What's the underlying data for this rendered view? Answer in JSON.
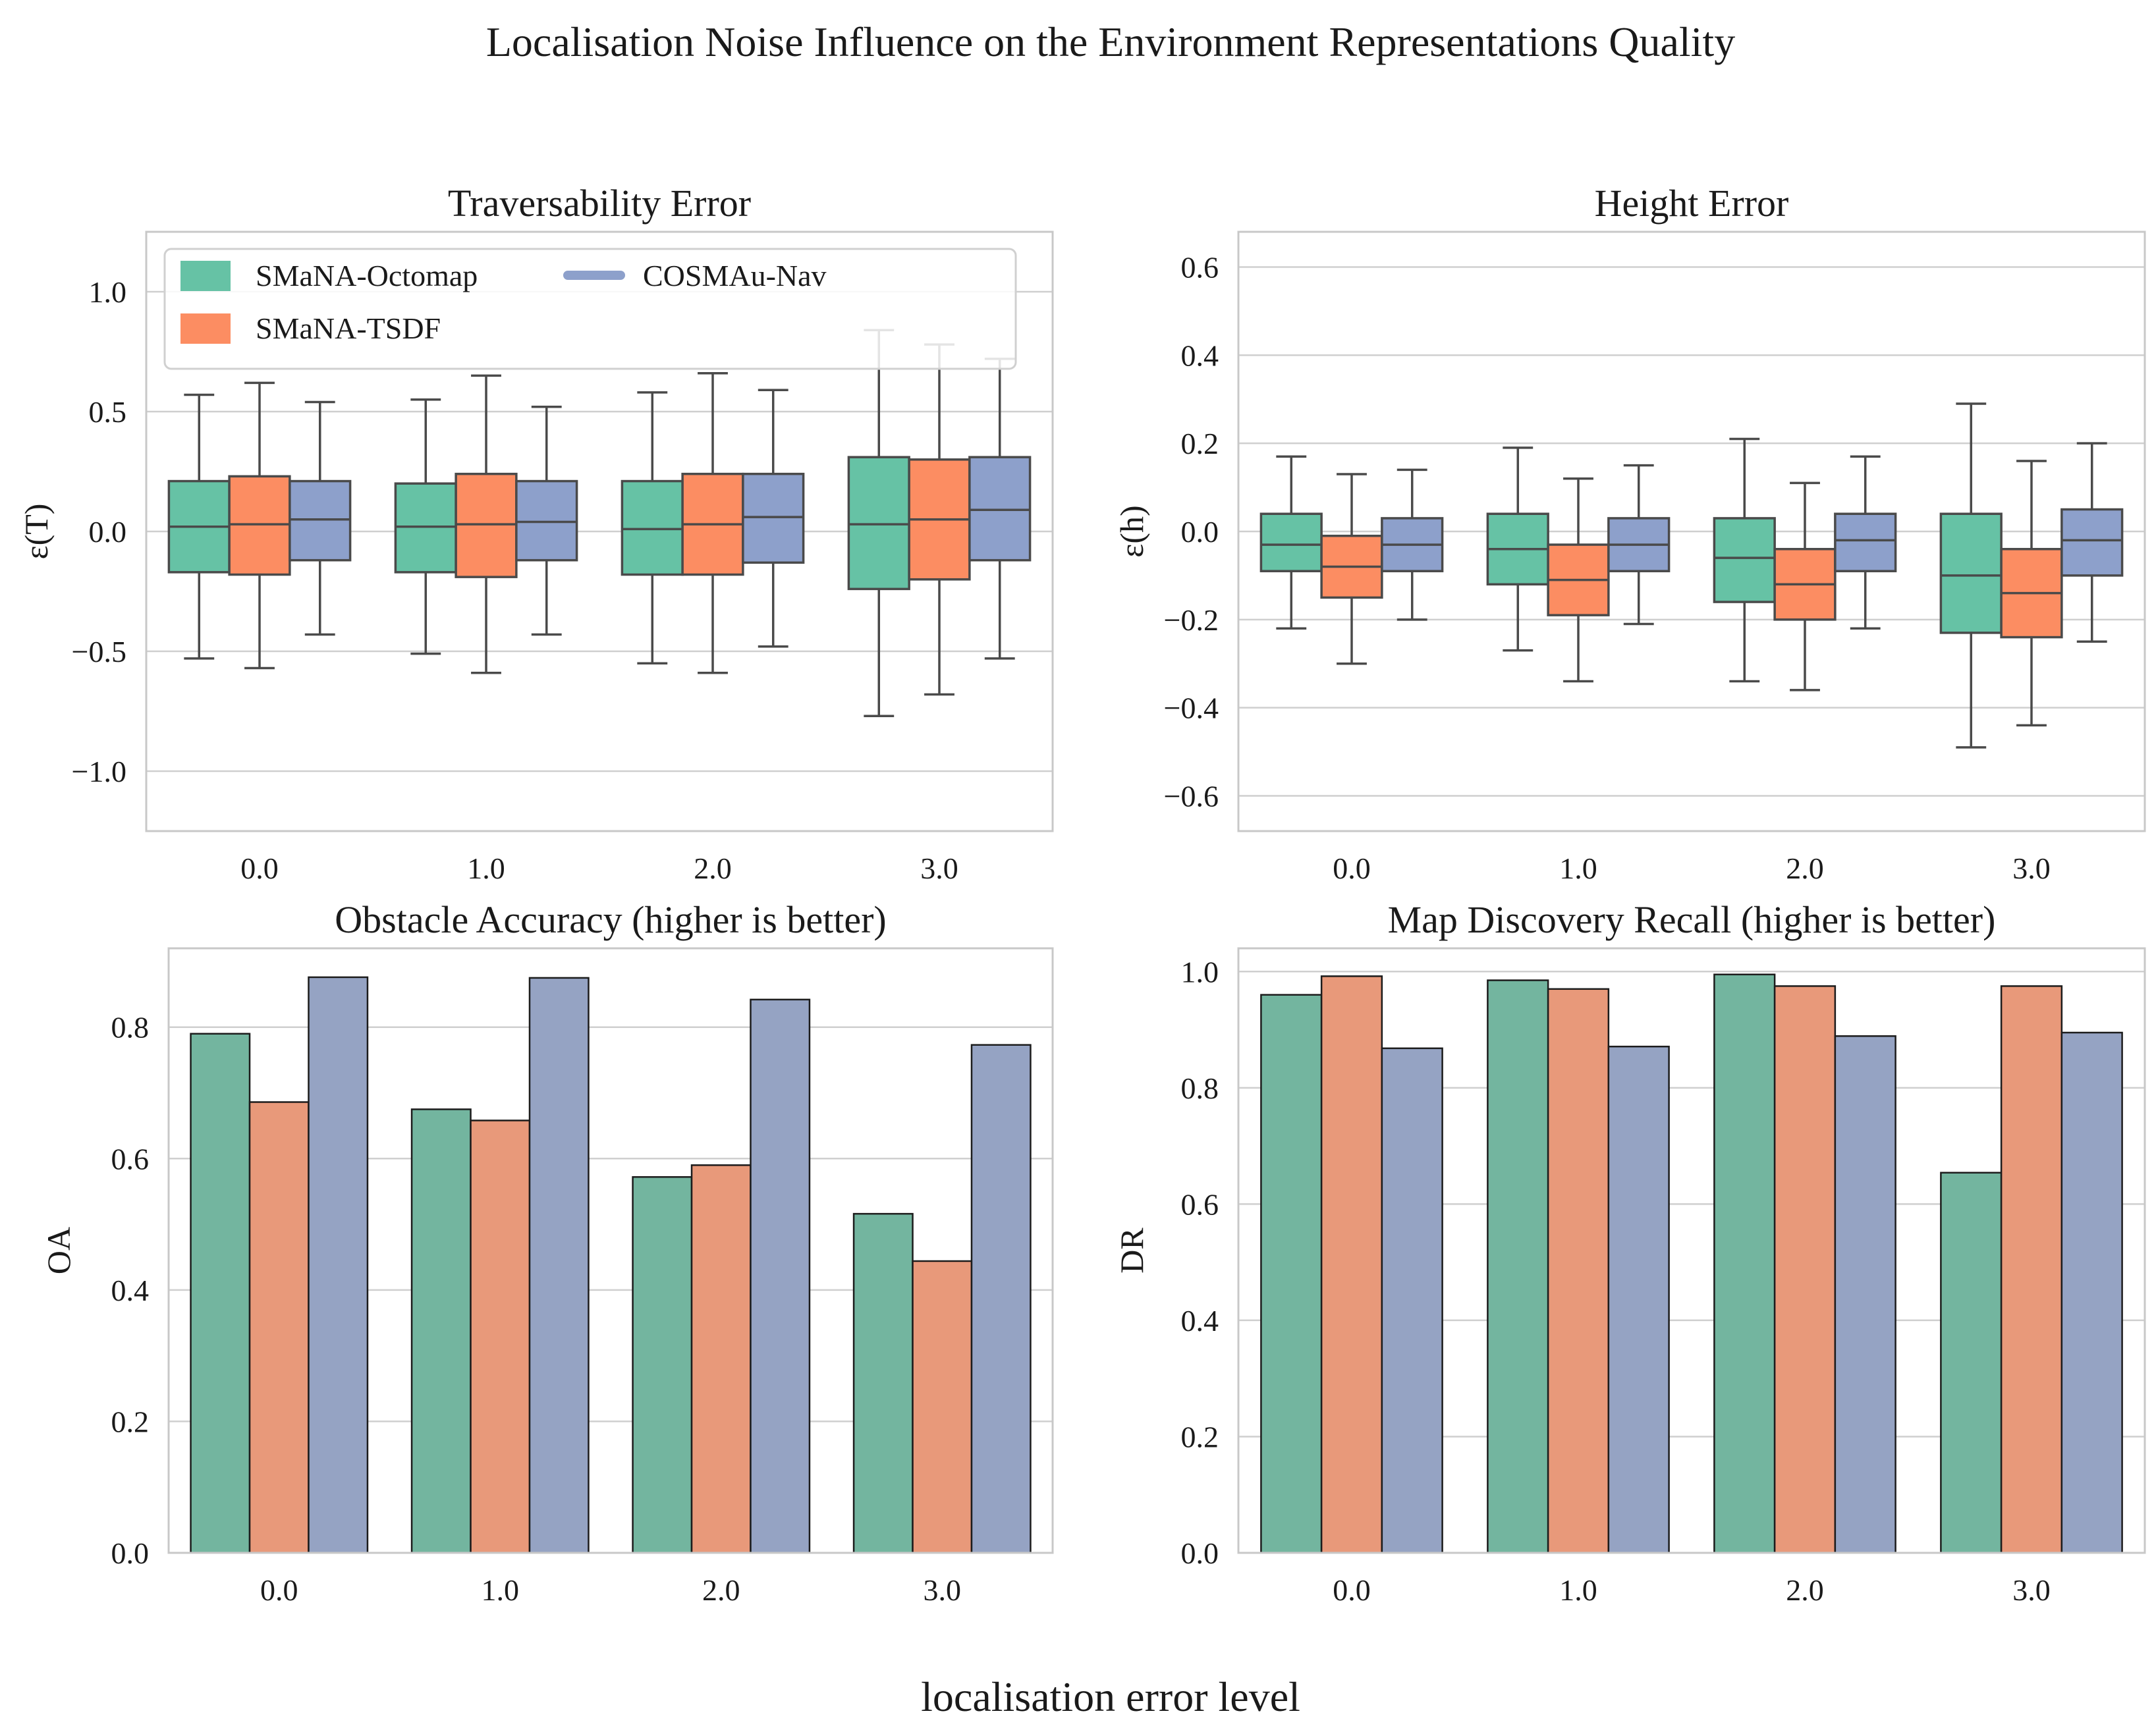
{
  "figure": {
    "title": "Localisation Noise Influence on the Environment Representations Quality",
    "xlabel": "localisation error level"
  },
  "legend": {
    "entries": [
      {
        "name": "SMaNA-Octomap",
        "color": "#66c2a5",
        "marker": "patch"
      },
      {
        "name": "SMaNA-TSDF",
        "color": "#fc8d62",
        "marker": "patch"
      },
      {
        "name": "COSMAu-Nav",
        "color": "#8da0cb",
        "marker": "line"
      }
    ]
  },
  "chart_data": [
    {
      "id": "traversability",
      "type": "box",
      "title": "Traversability Error",
      "xlabel": "",
      "ylabel": "ε(T)",
      "ylim": [
        -1.25,
        1.25
      ],
      "yticks": [
        -1.0,
        -0.5,
        0.0,
        0.5,
        1.0
      ],
      "ytick_labels": [
        "−1.0",
        "−0.5",
        "0.0",
        "0.5",
        "1.0"
      ],
      "categories": [
        "0.0",
        "1.0",
        "2.0",
        "3.0"
      ],
      "grid": true,
      "legend": "top-left",
      "series": [
        {
          "name": "SMaNA-Octomap",
          "color": "#66c2a5",
          "boxes": [
            {
              "whislo": -0.53,
              "q1": -0.17,
              "med": 0.02,
              "q3": 0.21,
              "whishi": 0.57
            },
            {
              "whislo": -0.51,
              "q1": -0.17,
              "med": 0.02,
              "q3": 0.2,
              "whishi": 0.55
            },
            {
              "whislo": -0.55,
              "q1": -0.18,
              "med": 0.01,
              "q3": 0.21,
              "whishi": 0.58
            },
            {
              "whislo": -0.77,
              "q1": -0.24,
              "med": 0.03,
              "q3": 0.31,
              "whishi": 0.84
            }
          ]
        },
        {
          "name": "SMaNA-TSDF",
          "color": "#fc8d62",
          "boxes": [
            {
              "whislo": -0.57,
              "q1": -0.18,
              "med": 0.03,
              "q3": 0.23,
              "whishi": 0.62
            },
            {
              "whislo": -0.59,
              "q1": -0.19,
              "med": 0.03,
              "q3": 0.24,
              "whishi": 0.65
            },
            {
              "whislo": -0.59,
              "q1": -0.18,
              "med": 0.03,
              "q3": 0.24,
              "whishi": 0.66
            },
            {
              "whislo": -0.68,
              "q1": -0.2,
              "med": 0.05,
              "q3": 0.3,
              "whishi": 0.78
            }
          ]
        },
        {
          "name": "COSMAu-Nav",
          "color": "#8da0cb",
          "boxes": [
            {
              "whislo": -0.43,
              "q1": -0.12,
              "med": 0.05,
              "q3": 0.21,
              "whishi": 0.54
            },
            {
              "whislo": -0.43,
              "q1": -0.12,
              "med": 0.04,
              "q3": 0.21,
              "whishi": 0.52
            },
            {
              "whislo": -0.48,
              "q1": -0.13,
              "med": 0.06,
              "q3": 0.24,
              "whishi": 0.59
            },
            {
              "whislo": -0.53,
              "q1": -0.12,
              "med": 0.09,
              "q3": 0.31,
              "whishi": 0.72
            }
          ]
        }
      ]
    },
    {
      "id": "height",
      "type": "box",
      "title": "Height Error",
      "xlabel": "",
      "ylabel": "ε(h)",
      "ylim": [
        -0.68,
        0.68
      ],
      "yticks": [
        -0.6,
        -0.4,
        -0.2,
        0.0,
        0.2,
        0.4,
        0.6
      ],
      "ytick_labels": [
        "−0.6",
        "−0.4",
        "−0.2",
        "0.0",
        "0.2",
        "0.4",
        "0.6"
      ],
      "categories": [
        "0.0",
        "1.0",
        "2.0",
        "3.0"
      ],
      "grid": true,
      "series": [
        {
          "name": "SMaNA-Octomap",
          "color": "#66c2a5",
          "boxes": [
            {
              "whislo": -0.22,
              "q1": -0.09,
              "med": -0.03,
              "q3": 0.04,
              "whishi": 0.17
            },
            {
              "whislo": -0.27,
              "q1": -0.12,
              "med": -0.04,
              "q3": 0.04,
              "whishi": 0.19
            },
            {
              "whislo": -0.34,
              "q1": -0.16,
              "med": -0.06,
              "q3": 0.03,
              "whishi": 0.21
            },
            {
              "whislo": -0.49,
              "q1": -0.23,
              "med": -0.1,
              "q3": 0.04,
              "whishi": 0.29
            }
          ]
        },
        {
          "name": "SMaNA-TSDF",
          "color": "#fc8d62",
          "boxes": [
            {
              "whislo": -0.3,
              "q1": -0.15,
              "med": -0.08,
              "q3": -0.01,
              "whishi": 0.13
            },
            {
              "whislo": -0.34,
              "q1": -0.19,
              "med": -0.11,
              "q3": -0.03,
              "whishi": 0.12
            },
            {
              "whislo": -0.36,
              "q1": -0.2,
              "med": -0.12,
              "q3": -0.04,
              "whishi": 0.11
            },
            {
              "whislo": -0.44,
              "q1": -0.24,
              "med": -0.14,
              "q3": -0.04,
              "whishi": 0.16
            }
          ]
        },
        {
          "name": "COSMAu-Nav",
          "color": "#8da0cb",
          "boxes": [
            {
              "whislo": -0.2,
              "q1": -0.09,
              "med": -0.03,
              "q3": 0.03,
              "whishi": 0.14
            },
            {
              "whislo": -0.21,
              "q1": -0.09,
              "med": -0.03,
              "q3": 0.03,
              "whishi": 0.15
            },
            {
              "whislo": -0.22,
              "q1": -0.09,
              "med": -0.02,
              "q3": 0.04,
              "whishi": 0.17
            },
            {
              "whislo": -0.25,
              "q1": -0.1,
              "med": -0.02,
              "q3": 0.05,
              "whishi": 0.2
            }
          ]
        }
      ]
    },
    {
      "id": "obstacle-accuracy",
      "type": "bar",
      "title": "Obstacle Accuracy (higher is better)",
      "xlabel": "",
      "ylabel": "OA",
      "ylim": [
        0,
        0.92
      ],
      "yticks": [
        0.0,
        0.2,
        0.4,
        0.6,
        0.8
      ],
      "ytick_labels": [
        "0.0",
        "0.2",
        "0.4",
        "0.6",
        "0.8"
      ],
      "categories": [
        "0.0",
        "1.0",
        "2.0",
        "3.0"
      ],
      "grid": true,
      "series": [
        {
          "name": "SMaNA-Octomap",
          "color": "#73b59f",
          "values": [
            0.79,
            0.675,
            0.572,
            0.516
          ]
        },
        {
          "name": "SMaNA-TSDF",
          "color": "#e8997a",
          "values": [
            0.686,
            0.658,
            0.59,
            0.444
          ]
        },
        {
          "name": "COSMAu-Nav",
          "color": "#95a3c3",
          "values": [
            0.876,
            0.875,
            0.842,
            0.773
          ]
        }
      ]
    },
    {
      "id": "map-discovery-recall",
      "type": "bar",
      "title": "Map Discovery Recall (higher is better)",
      "xlabel": "",
      "ylabel": "DR",
      "ylim": [
        0,
        1.04
      ],
      "yticks": [
        0.0,
        0.2,
        0.4,
        0.6,
        0.8,
        1.0
      ],
      "ytick_labels": [
        "0.0",
        "0.2",
        "0.4",
        "0.6",
        "0.8",
        "1.0"
      ],
      "categories": [
        "0.0",
        "1.0",
        "2.0",
        "3.0"
      ],
      "grid": true,
      "series": [
        {
          "name": "SMaNA-Octomap",
          "color": "#73b59f",
          "values": [
            0.96,
            0.985,
            0.995,
            0.654
          ]
        },
        {
          "name": "SMaNA-TSDF",
          "color": "#e8997a",
          "values": [
            0.992,
            0.97,
            0.975,
            0.975
          ]
        },
        {
          "name": "COSMAu-Nav",
          "color": "#95a3c3",
          "values": [
            0.868,
            0.871,
            0.889,
            0.895
          ]
        }
      ]
    }
  ]
}
